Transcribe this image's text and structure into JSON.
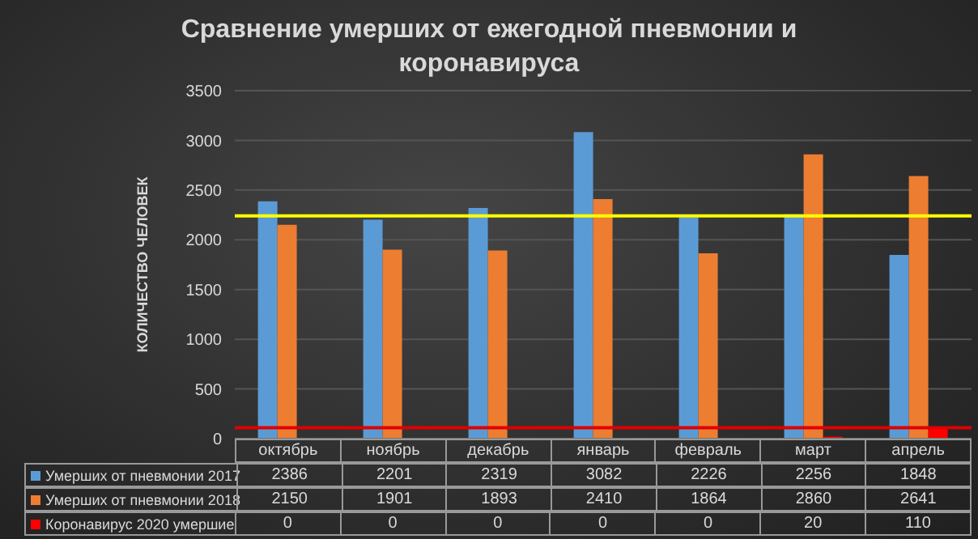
{
  "chart_data": {
    "type": "bar",
    "title": "Сравнение умерших от ежегодной пневмонии и коронавируса",
    "ylabel": "КОЛИЧЕСТВО ЧЕЛОВЕК",
    "categories": [
      "октябрь",
      "ноябрь",
      "декабрь",
      "январь",
      "февраль",
      "март",
      "апрель"
    ],
    "series": [
      {
        "name": "Умерших от пневмонии 2017",
        "color": "#5b9bd5",
        "values": [
          2386,
          2201,
          2319,
          3082,
          2226,
          2256,
          1848
        ]
      },
      {
        "name": "Умерших от пневмонии 2018",
        "color": "#ed7d31",
        "values": [
          2150,
          1901,
          1893,
          2410,
          1864,
          2860,
          2641
        ]
      },
      {
        "name": "Коронавирус 2020 умершие",
        "color": "#ff0000",
        "values": [
          0,
          0,
          0,
          0,
          0,
          20,
          110
        ]
      }
    ],
    "ylim": [
      0,
      3500
    ],
    "yticks": [
      0,
      500,
      1000,
      1500,
      2000,
      2500,
      3000,
      3500
    ],
    "grid": "y",
    "legend": "bottom",
    "data_labels": true,
    "ref_lines": [
      {
        "axis": "y",
        "value": 2240,
        "color": "#ffff00"
      },
      {
        "axis": "y",
        "value": 110,
        "color": "#e00000"
      }
    ]
  }
}
